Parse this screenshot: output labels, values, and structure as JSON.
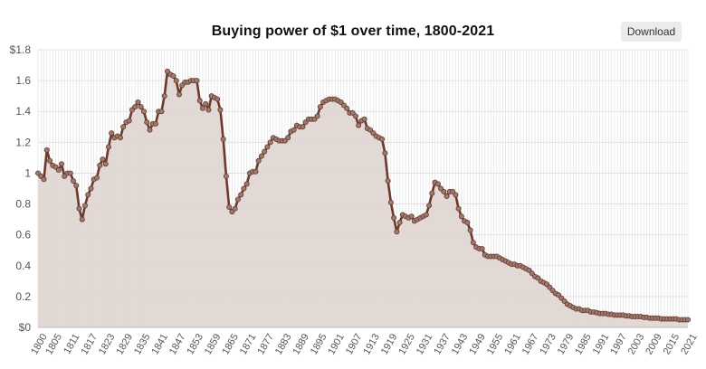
{
  "chart_title": "Buying power of $1 over time, 1800-2021",
  "download_label": "Download",
  "colors": {
    "line": "#6b3a2a",
    "fill": "#e0d6d3",
    "marker_fill": "#9a7a72",
    "grid": "#dddddd",
    "text": "#555555"
  },
  "chart_data": {
    "type": "area",
    "title": "Buying power of $1 over time, 1800-2021",
    "xlabel": "",
    "ylabel": "",
    "xlim": [
      1800,
      2021
    ],
    "ylim": [
      0,
      1.8
    ],
    "y_ticks": [
      "$0",
      "0.2",
      "0.4",
      "0.6",
      "0.8",
      "1",
      "1.2",
      "1.4",
      "1.6",
      "$1.8"
    ],
    "x_ticks": [
      "1800",
      "1805",
      "1811",
      "1817",
      "1823",
      "1829",
      "1835",
      "1841",
      "1847",
      "1853",
      "1859",
      "1865",
      "1871",
      "1877",
      "1883",
      "1889",
      "1895",
      "1901",
      "1907",
      "1913",
      "1919",
      "1925",
      "1931",
      "1937",
      "1943",
      "1949",
      "1955",
      "1961",
      "1967",
      "1973",
      "1979",
      "1985",
      "1991",
      "1997",
      "2003",
      "2009",
      "2015",
      "2021"
    ],
    "grid": true,
    "legend": "none",
    "series": [
      {
        "points": [
          [
            1800,
            1.0
          ],
          [
            1801,
            0.98
          ],
          [
            1802,
            0.96
          ],
          [
            1803,
            1.15
          ],
          [
            1804,
            1.08
          ],
          [
            1805,
            1.05
          ],
          [
            1806,
            1.04
          ],
          [
            1807,
            1.02
          ],
          [
            1808,
            1.06
          ],
          [
            1809,
            0.98
          ],
          [
            1810,
            1.0
          ],
          [
            1811,
            1.0
          ],
          [
            1812,
            0.95
          ],
          [
            1813,
            0.92
          ],
          [
            1814,
            0.77
          ],
          [
            1815,
            0.7
          ],
          [
            1816,
            0.79
          ],
          [
            1817,
            0.86
          ],
          [
            1818,
            0.9
          ],
          [
            1819,
            0.96
          ],
          [
            1820,
            0.97
          ],
          [
            1821,
            1.05
          ],
          [
            1822,
            1.09
          ],
          [
            1823,
            1.06
          ],
          [
            1824,
            1.17
          ],
          [
            1825,
            1.26
          ],
          [
            1826,
            1.23
          ],
          [
            1827,
            1.24
          ],
          [
            1828,
            1.23
          ],
          [
            1829,
            1.3
          ],
          [
            1830,
            1.33
          ],
          [
            1831,
            1.34
          ],
          [
            1832,
            1.41
          ],
          [
            1833,
            1.43
          ],
          [
            1834,
            1.46
          ],
          [
            1835,
            1.43
          ],
          [
            1836,
            1.4
          ],
          [
            1837,
            1.33
          ],
          [
            1838,
            1.28
          ],
          [
            1839,
            1.32
          ],
          [
            1840,
            1.32
          ],
          [
            1841,
            1.4
          ],
          [
            1842,
            1.4
          ],
          [
            1843,
            1.5
          ],
          [
            1844,
            1.66
          ],
          [
            1845,
            1.64
          ],
          [
            1846,
            1.63
          ],
          [
            1847,
            1.6
          ],
          [
            1848,
            1.51
          ],
          [
            1849,
            1.57
          ],
          [
            1850,
            1.59
          ],
          [
            1851,
            1.59
          ],
          [
            1852,
            1.6
          ],
          [
            1853,
            1.6
          ],
          [
            1854,
            1.6
          ],
          [
            1855,
            1.47
          ],
          [
            1856,
            1.42
          ],
          [
            1857,
            1.45
          ],
          [
            1858,
            1.41
          ],
          [
            1859,
            1.5
          ],
          [
            1860,
            1.49
          ],
          [
            1861,
            1.48
          ],
          [
            1862,
            1.41
          ],
          [
            1863,
            1.22
          ],
          [
            1864,
            0.98
          ],
          [
            1865,
            0.78
          ],
          [
            1866,
            0.75
          ],
          [
            1867,
            0.77
          ],
          [
            1868,
            0.83
          ],
          [
            1869,
            0.86
          ],
          [
            1870,
            0.9
          ],
          [
            1871,
            0.93
          ],
          [
            1872,
            1.0
          ],
          [
            1873,
            1.01
          ],
          [
            1874,
            1.01
          ],
          [
            1875,
            1.08
          ],
          [
            1876,
            1.11
          ],
          [
            1877,
            1.14
          ],
          [
            1878,
            1.17
          ],
          [
            1879,
            1.2
          ],
          [
            1880,
            1.23
          ],
          [
            1881,
            1.22
          ],
          [
            1882,
            1.21
          ],
          [
            1883,
            1.21
          ],
          [
            1884,
            1.21
          ],
          [
            1885,
            1.23
          ],
          [
            1886,
            1.27
          ],
          [
            1887,
            1.28
          ],
          [
            1888,
            1.31
          ],
          [
            1889,
            1.3
          ],
          [
            1890,
            1.3
          ],
          [
            1891,
            1.33
          ],
          [
            1892,
            1.35
          ],
          [
            1893,
            1.35
          ],
          [
            1894,
            1.35
          ],
          [
            1895,
            1.37
          ],
          [
            1896,
            1.43
          ],
          [
            1897,
            1.46
          ],
          [
            1898,
            1.47
          ],
          [
            1899,
            1.48
          ],
          [
            1900,
            1.48
          ],
          [
            1901,
            1.48
          ],
          [
            1902,
            1.47
          ],
          [
            1903,
            1.46
          ],
          [
            1904,
            1.44
          ],
          [
            1905,
            1.42
          ],
          [
            1906,
            1.39
          ],
          [
            1907,
            1.39
          ],
          [
            1908,
            1.37
          ],
          [
            1909,
            1.31
          ],
          [
            1910,
            1.34
          ],
          [
            1911,
            1.35
          ],
          [
            1912,
            1.29
          ],
          [
            1913,
            1.28
          ],
          [
            1914,
            1.26
          ],
          [
            1915,
            1.24
          ],
          [
            1916,
            1.23
          ],
          [
            1917,
            1.22
          ],
          [
            1918,
            1.13
          ],
          [
            1919,
            0.95
          ],
          [
            1920,
            0.81
          ],
          [
            1921,
            0.71
          ],
          [
            1922,
            0.62
          ],
          [
            1923,
            0.68
          ],
          [
            1924,
            0.73
          ],
          [
            1925,
            0.72
          ],
          [
            1926,
            0.71
          ],
          [
            1927,
            0.72
          ],
          [
            1928,
            0.69
          ],
          [
            1929,
            0.7
          ],
          [
            1930,
            0.71
          ],
          [
            1931,
            0.72
          ],
          [
            1932,
            0.73
          ],
          [
            1933,
            0.79
          ],
          [
            1934,
            0.87
          ],
          [
            1935,
            0.94
          ],
          [
            1936,
            0.93
          ],
          [
            1937,
            0.9
          ],
          [
            1938,
            0.88
          ],
          [
            1939,
            0.85
          ],
          [
            1940,
            0.88
          ],
          [
            1941,
            0.88
          ],
          [
            1942,
            0.86
          ],
          [
            1943,
            0.77
          ],
          [
            1944,
            0.72
          ],
          [
            1945,
            0.69
          ],
          [
            1946,
            0.68
          ],
          [
            1947,
            0.63
          ],
          [
            1948,
            0.55
          ],
          [
            1949,
            0.52
          ],
          [
            1950,
            0.51
          ],
          [
            1951,
            0.51
          ],
          [
            1952,
            0.47
          ],
          [
            1953,
            0.46
          ],
          [
            1954,
            0.46
          ],
          [
            1955,
            0.46
          ],
          [
            1956,
            0.46
          ],
          [
            1957,
            0.45
          ],
          [
            1958,
            0.44
          ],
          [
            1959,
            0.43
          ],
          [
            1960,
            0.42
          ],
          [
            1961,
            0.41
          ],
          [
            1962,
            0.41
          ],
          [
            1963,
            0.4
          ],
          [
            1964,
            0.4
          ],
          [
            1965,
            0.39
          ],
          [
            1966,
            0.38
          ],
          [
            1967,
            0.37
          ],
          [
            1968,
            0.35
          ],
          [
            1969,
            0.33
          ],
          [
            1970,
            0.32
          ],
          [
            1971,
            0.3
          ],
          [
            1972,
            0.29
          ],
          [
            1973,
            0.28
          ],
          [
            1974,
            0.26
          ],
          [
            1975,
            0.24
          ],
          [
            1976,
            0.22
          ],
          [
            1977,
            0.21
          ],
          [
            1978,
            0.19
          ],
          [
            1979,
            0.17
          ],
          [
            1980,
            0.15
          ],
          [
            1981,
            0.14
          ],
          [
            1982,
            0.13
          ],
          [
            1983,
            0.12
          ],
          [
            1984,
            0.12
          ],
          [
            1985,
            0.11
          ],
          [
            1986,
            0.11
          ],
          [
            1987,
            0.11
          ],
          [
            1988,
            0.1
          ],
          [
            1989,
            0.1
          ],
          [
            1990,
            0.095
          ],
          [
            1991,
            0.09
          ],
          [
            1992,
            0.09
          ],
          [
            1993,
            0.09
          ],
          [
            1994,
            0.085
          ],
          [
            1995,
            0.085
          ],
          [
            1996,
            0.08
          ],
          [
            1997,
            0.08
          ],
          [
            1998,
            0.08
          ],
          [
            1999,
            0.08
          ],
          [
            2000,
            0.075
          ],
          [
            2001,
            0.075
          ],
          [
            2002,
            0.07
          ],
          [
            2003,
            0.07
          ],
          [
            2004,
            0.07
          ],
          [
            2005,
            0.07
          ],
          [
            2006,
            0.065
          ],
          [
            2007,
            0.065
          ],
          [
            2008,
            0.06
          ],
          [
            2009,
            0.06
          ],
          [
            2010,
            0.06
          ],
          [
            2011,
            0.06
          ],
          [
            2012,
            0.055
          ],
          [
            2013,
            0.055
          ],
          [
            2014,
            0.055
          ],
          [
            2015,
            0.055
          ],
          [
            2016,
            0.055
          ],
          [
            2017,
            0.055
          ],
          [
            2018,
            0.05
          ],
          [
            2019,
            0.05
          ],
          [
            2020,
            0.05
          ],
          [
            2021,
            0.05
          ]
        ]
      }
    ]
  }
}
